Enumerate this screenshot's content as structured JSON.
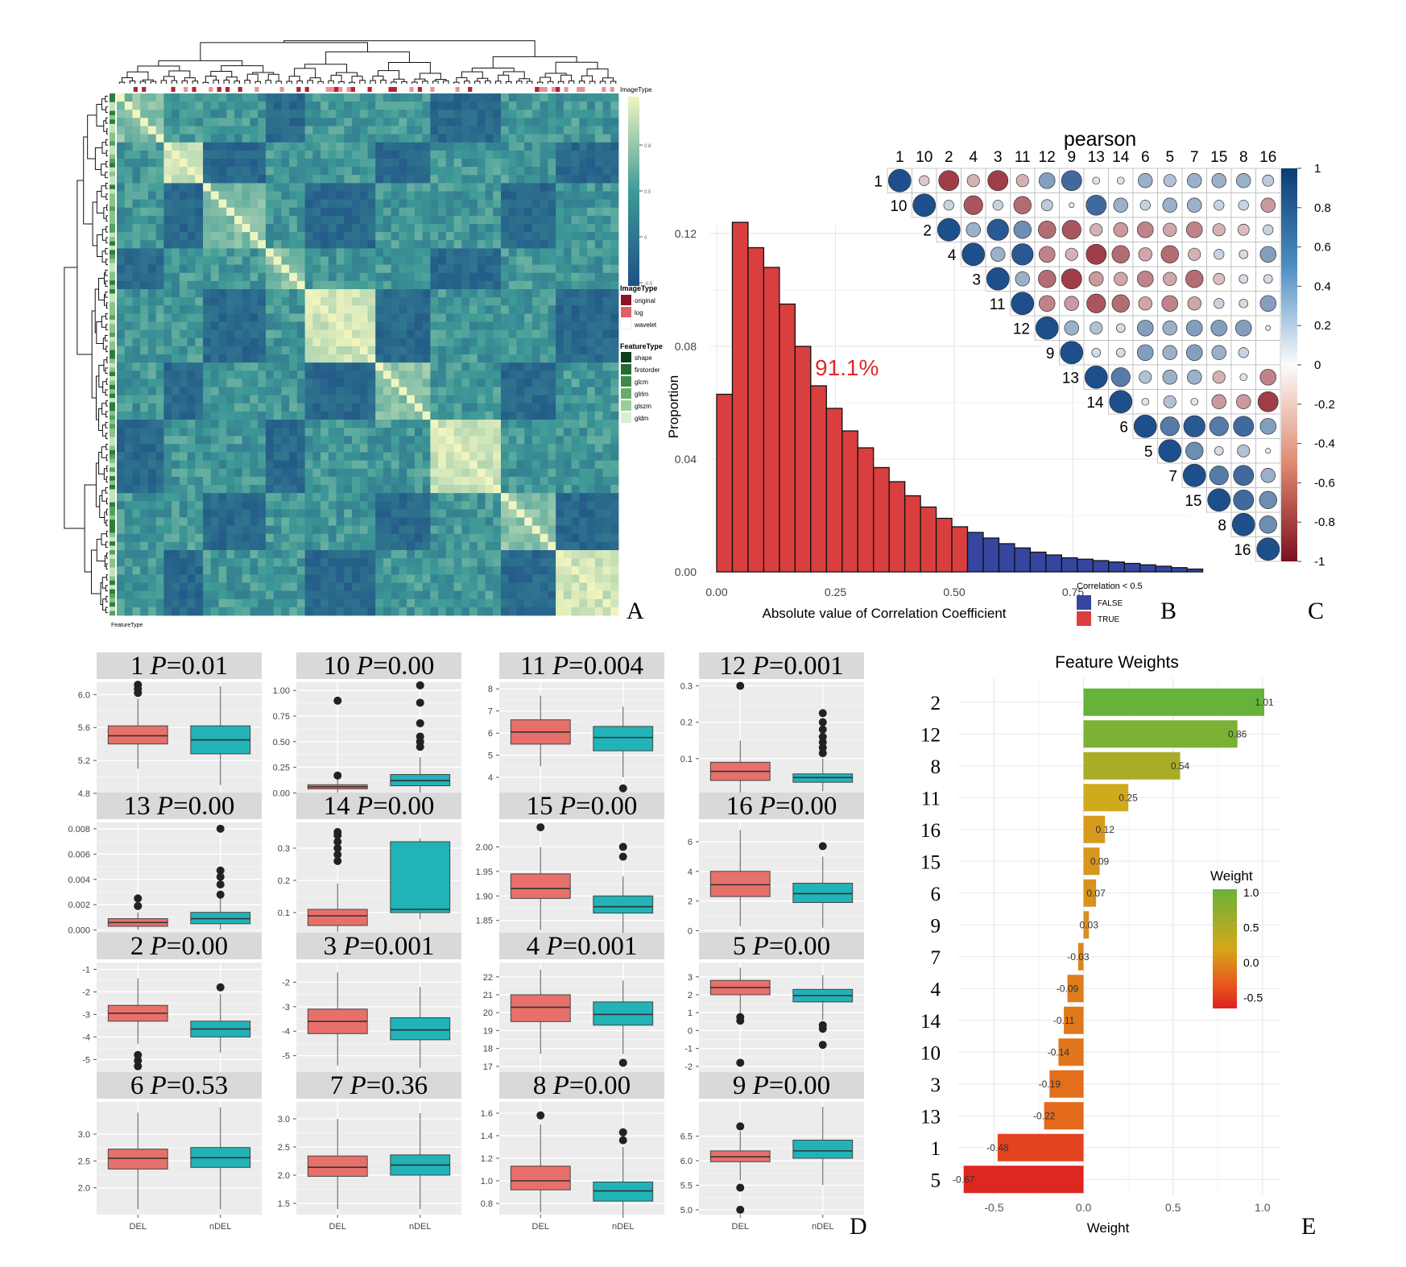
{
  "panel_letters": [
    "A",
    "B",
    "C",
    "D",
    "E"
  ],
  "colors": {
    "red": "#d93f3f",
    "blue": "#3545a0",
    "box_del": "#e8706b",
    "box_ndel": "#21b3b8",
    "heat_lo": "#1f4f86",
    "heat_mid": "#3f9a97",
    "heat_hi": "#f0f5c0",
    "corr_pos": "#1d4f8c",
    "corr_neg": "#8e1b26",
    "panel_bg": "#ececec",
    "strip_bg": "#d9d9d9"
  },
  "panel_a": {
    "title": "ImageType",
    "colorbar_ticks": [
      "0.8",
      "0.5",
      "0",
      "-0.5"
    ],
    "legend1_title": "ImageType",
    "legend1_items": [
      {
        "label": "original",
        "color": "#8a1424"
      },
      {
        "label": "log",
        "color": "#e0606a"
      },
      {
        "label": "wavelet",
        "color": "#ffffff"
      }
    ],
    "legend2_title": "FeatureType",
    "legend2_items": [
      {
        "label": "shape",
        "color": "#0d3d1a"
      },
      {
        "label": "firstorder",
        "color": "#236b32"
      },
      {
        "label": "glcm",
        "color": "#3b8a47"
      },
      {
        "label": "glrlm",
        "color": "#66ad6c"
      },
      {
        "label": "glszm",
        "color": "#9ccd98"
      },
      {
        "label": "gldm",
        "color": "#d7efd2"
      }
    ],
    "bottom_label": "FeatureType"
  },
  "chart_data": [
    {
      "panel": "B",
      "type": "bar",
      "xlabel": "Absolute value of Correlation Coefficient",
      "ylabel": "Proportion",
      "x_ticks": [
        "0.00",
        "0.25",
        "0.50",
        "0.75"
      ],
      "y_ticks": [
        "0.00",
        "0.04",
        "0.08",
        "0.12"
      ],
      "xlim": [
        0,
        1
      ],
      "ylim": [
        0,
        0.12
      ],
      "bin_width": 0.033,
      "bin_starts": [
        0.0,
        0.033,
        0.066,
        0.099,
        0.132,
        0.165,
        0.198,
        0.231,
        0.264,
        0.297,
        0.33,
        0.363,
        0.396,
        0.429,
        0.462,
        0.495,
        0.528,
        0.561,
        0.594,
        0.627,
        0.66,
        0.693,
        0.726,
        0.759,
        0.792,
        0.825,
        0.858,
        0.891,
        0.924,
        0.957,
        0.99
      ],
      "values": [
        0.063,
        0.124,
        0.115,
        0.108,
        0.095,
        0.08,
        0.066,
        0.058,
        0.05,
        0.044,
        0.037,
        0.032,
        0.027,
        0.023,
        0.019,
        0.016,
        0.014,
        0.012,
        0.01,
        0.0085,
        0.007,
        0.006,
        0.005,
        0.0045,
        0.004,
        0.0035,
        0.003,
        0.0025,
        0.002,
        0.0015,
        0.001
      ],
      "threshold": 0.5,
      "annotation": "91.1%",
      "legend_title": "Correlation < 0.5",
      "legend": [
        {
          "label": "FALSE",
          "color": "#3545a0"
        },
        {
          "label": "TRUE",
          "color": "#d93f3f"
        }
      ]
    },
    {
      "panel": "C",
      "type": "heatmap",
      "title": "pearson",
      "labels": [
        "1",
        "10",
        "2",
        "4",
        "3",
        "11",
        "12",
        "9",
        "13",
        "14",
        "6",
        "5",
        "7",
        "15",
        "8",
        "16"
      ],
      "upper_triangle": [
        [
          1,
          -0.2,
          -0.8,
          -0.3,
          -0.8,
          -0.3,
          0.5,
          0.8,
          0.1,
          0.1,
          0.4,
          0.3,
          0.4,
          0.4,
          0.4,
          0.25
        ],
        [
          1,
          0.2,
          -0.7,
          0.2,
          -0.6,
          0.25,
          0.05,
          0.8,
          0.4,
          0.2,
          0.4,
          0.4,
          0.2,
          0.2,
          -0.4
        ],
        [
          1,
          0.4,
          0.9,
          0.6,
          -0.6,
          -0.7,
          -0.3,
          -0.4,
          -0.5,
          -0.35,
          -0.5,
          -0.3,
          -0.25,
          0.2
        ],
        [
          1,
          0.4,
          0.9,
          -0.5,
          -0.3,
          -0.8,
          -0.6,
          -0.35,
          -0.6,
          -0.3,
          0.2,
          0.15,
          0.5
        ],
        [
          1,
          0.4,
          -0.6,
          -0.8,
          -0.4,
          -0.35,
          -0.5,
          -0.35,
          -0.6,
          -0.25,
          0.15,
          0.15
        ],
        [
          1,
          -0.5,
          -0.4,
          -0.7,
          -0.6,
          -0.35,
          -0.5,
          -0.35,
          0.2,
          0.15,
          0.5
        ],
        [
          1,
          0.4,
          0.3,
          0.15,
          0.5,
          0.4,
          0.5,
          0.5,
          0.5,
          0.05
        ],
        [
          1,
          0.15,
          0.15,
          0.5,
          0.4,
          0.5,
          0.4,
          0.2
        ],
        [
          1,
          0.7,
          0.3,
          0.4,
          0.4,
          -0.3,
          0.1,
          -0.5
        ],
        [
          1,
          0.1,
          0.3,
          0.1,
          -0.4,
          -0.4,
          -0.8
        ],
        [
          1,
          0.7,
          0.9,
          0.7,
          0.8,
          0.5
        ],
        [
          1,
          0.6,
          0.15,
          0.3,
          0.05
        ],
        [
          1,
          0.7,
          0.8,
          0.4
        ],
        [
          1,
          0.8,
          0.6
        ],
        [
          1,
          0.6
        ],
        [
          1
        ]
      ],
      "colorbar_ticks": [
        "1",
        "0.8",
        "0.6",
        "0.4",
        "0.2",
        "0",
        "-0.2",
        "-0.4",
        "-0.6",
        "-0.8",
        "-1"
      ]
    },
    {
      "panel": "D",
      "type": "box",
      "categories": [
        "DEL",
        "nDEL"
      ],
      "facets": [
        {
          "id": "1",
          "p": "P=0.01",
          "yticks": [
            "6.0",
            "5.6",
            "5.2",
            "4.8"
          ],
          "tickvals": [
            6.0,
            5.6,
            5.2,
            4.8
          ],
          "ylim": [
            4.78,
            6.15
          ],
          "DEL": {
            "q1": 5.4,
            "med": 5.5,
            "q3": 5.62,
            "lo": 5.1,
            "hi": 5.95,
            "out": [
              6.02,
              6.07,
              6.12
            ]
          },
          "nDEL": {
            "q1": 5.28,
            "med": 5.45,
            "q3": 5.62,
            "lo": 4.9,
            "hi": 6.1,
            "out": []
          }
        },
        {
          "id": "10",
          "p": "P=0.00",
          "yticks": [
            "1.00",
            "0.75",
            "0.50",
            "0.25",
            "0.00"
          ],
          "tickvals": [
            1.0,
            0.75,
            0.5,
            0.25,
            0.0
          ],
          "ylim": [
            -0.02,
            1.08
          ],
          "DEL": {
            "q1": 0.04,
            "med": 0.06,
            "q3": 0.08,
            "lo": 0.0,
            "hi": 0.14,
            "out": [
              0.17,
              0.9
            ]
          },
          "nDEL": {
            "q1": 0.07,
            "med": 0.12,
            "q3": 0.18,
            "lo": 0.0,
            "hi": 0.35,
            "out": [
              0.45,
              0.5,
              0.55,
              0.68,
              0.88,
              1.05
            ]
          }
        },
        {
          "id": "11",
          "p": "P=0.004",
          "yticks": [
            "8",
            "7",
            "6",
            "5",
            "4"
          ],
          "tickvals": [
            8,
            7,
            6,
            5,
            4
          ],
          "ylim": [
            3.2,
            8.3
          ],
          "DEL": {
            "q1": 5.5,
            "med": 6.05,
            "q3": 6.6,
            "lo": 4.5,
            "hi": 7.7,
            "out": []
          },
          "nDEL": {
            "q1": 5.2,
            "med": 5.8,
            "q3": 6.3,
            "lo": 4.0,
            "hi": 7.2,
            "out": [
              3.5
            ]
          }
        },
        {
          "id": "12",
          "p": "P=0.001",
          "yticks": [
            "0.3",
            "0.2",
            "0.1"
          ],
          "tickvals": [
            0.3,
            0.2,
            0.1
          ],
          "ylim": [
            0.0,
            0.31
          ],
          "DEL": {
            "q1": 0.04,
            "med": 0.065,
            "q3": 0.09,
            "lo": 0.005,
            "hi": 0.15,
            "out": [
              0.3
            ]
          },
          "nDEL": {
            "q1": 0.035,
            "med": 0.048,
            "q3": 0.058,
            "lo": 0.01,
            "hi": 0.1,
            "out": [
              0.115,
              0.13,
              0.145,
              0.16,
              0.18,
              0.2,
              0.225
            ]
          }
        },
        {
          "id": "13",
          "p": "P=0.00",
          "yticks": [
            "0.008",
            "0.006",
            "0.004",
            "0.002",
            "0.000"
          ],
          "tickvals": [
            0.008,
            0.006,
            0.004,
            0.002,
            0.0
          ],
          "ylim": [
            -0.0004,
            0.0085
          ],
          "DEL": {
            "q1": 0.0003,
            "med": 0.0006,
            "q3": 0.0009,
            "lo": 0.0,
            "hi": 0.0014,
            "out": [
              0.0019,
              0.0025
            ]
          },
          "nDEL": {
            "q1": 0.0005,
            "med": 0.0009,
            "q3": 0.0014,
            "lo": 0.0,
            "hi": 0.0025,
            "out": [
              0.0028,
              0.0036,
              0.0042,
              0.0047,
              0.008
            ]
          }
        },
        {
          "id": "14",
          "p": "P=0.00",
          "yticks": [
            "0.3",
            "0.2",
            "0.1"
          ],
          "tickvals": [
            0.3,
            0.2,
            0.1
          ],
          "ylim": [
            0.03,
            0.38
          ],
          "DEL": {
            "q1": 0.06,
            "med": 0.09,
            "q3": 0.11,
            "lo": 0.04,
            "hi": 0.19,
            "out": [
              0.26,
              0.28,
              0.3,
              0.32,
              0.34,
              0.35
            ]
          },
          "nDEL": {
            "q1": 0.1,
            "med": 0.11,
            "q3": 0.32,
            "lo": 0.08,
            "hi": 0.33,
            "out": []
          }
        },
        {
          "id": "15",
          "p": "P=0.00",
          "yticks": [
            "2.00",
            "1.95",
            "1.90",
            "1.85"
          ],
          "tickvals": [
            2.0,
            1.95,
            1.9,
            1.85
          ],
          "ylim": [
            1.82,
            2.05
          ],
          "DEL": {
            "q1": 1.895,
            "med": 1.915,
            "q3": 1.945,
            "lo": 1.83,
            "hi": 2.0,
            "out": [
              2.04
            ]
          },
          "nDEL": {
            "q1": 1.865,
            "med": 1.878,
            "q3": 1.9,
            "lo": 1.82,
            "hi": 1.94,
            "out": [
              1.98,
              2.0
            ]
          }
        },
        {
          "id": "16",
          "p": "P=0.00",
          "yticks": [
            "6",
            "4",
            "2",
            "0"
          ],
          "tickvals": [
            6,
            4,
            2,
            0
          ],
          "ylim": [
            -0.3,
            7.3
          ],
          "DEL": {
            "q1": 2.3,
            "med": 3.1,
            "q3": 4.0,
            "lo": 0.3,
            "hi": 6.8,
            "out": []
          },
          "nDEL": {
            "q1": 1.9,
            "med": 2.5,
            "q3": 3.2,
            "lo": 0.2,
            "hi": 5.0,
            "out": [
              5.7
            ]
          }
        },
        {
          "id": "2",
          "p": "P=0.00",
          "yticks": [
            "-1",
            "-2",
            "-3",
            "-4",
            "-5"
          ],
          "tickvals": [
            -1,
            -2,
            -3,
            -4,
            -5
          ],
          "ylim": [
            -5.7,
            -0.7
          ],
          "DEL": {
            "q1": -3.3,
            "med": -2.95,
            "q3": -2.6,
            "lo": -4.3,
            "hi": -1.4,
            "out": [
              -4.8,
              -5.05,
              -5.3
            ]
          },
          "nDEL": {
            "q1": -4.0,
            "med": -3.65,
            "q3": -3.3,
            "lo": -4.7,
            "hi": -2.1,
            "out": [
              -1.8
            ]
          }
        },
        {
          "id": "3",
          "p": "P=0.001",
          "yticks": [
            "-2",
            "-3",
            "-4",
            "-5"
          ],
          "tickvals": [
            -2,
            -3,
            -4,
            -5
          ],
          "ylim": [
            -5.8,
            -1.2
          ],
          "DEL": {
            "q1": -4.1,
            "med": -3.6,
            "q3": -3.1,
            "lo": -5.4,
            "hi": -1.6,
            "out": []
          },
          "nDEL": {
            "q1": -4.35,
            "med": -3.95,
            "q3": -3.45,
            "lo": -5.5,
            "hi": -2.2,
            "out": []
          }
        },
        {
          "id": "4",
          "p": "P=0.001",
          "yticks": [
            "22",
            "21",
            "20",
            "19",
            "18",
            "17"
          ],
          "tickvals": [
            22,
            21,
            20,
            19,
            18,
            17
          ],
          "ylim": [
            16.5,
            22.8
          ],
          "DEL": {
            "q1": 19.5,
            "med": 20.3,
            "q3": 21.0,
            "lo": 17.7,
            "hi": 22.4,
            "out": []
          },
          "nDEL": {
            "q1": 19.3,
            "med": 19.9,
            "q3": 20.6,
            "lo": 17.7,
            "hi": 21.8,
            "out": [
              17.2
            ]
          }
        },
        {
          "id": "5",
          "p": "P=0.00",
          "yticks": [
            "3",
            "2",
            "1",
            "0",
            "-1",
            "-2"
          ],
          "tickvals": [
            3,
            2,
            1,
            0,
            -1,
            -2
          ],
          "ylim": [
            -2.5,
            3.8
          ],
          "DEL": {
            "q1": 2.0,
            "med": 2.4,
            "q3": 2.8,
            "lo": 0.9,
            "hi": 3.5,
            "out": [
              0.55,
              0.75,
              -1.8
            ]
          },
          "nDEL": {
            "q1": 1.6,
            "med": 1.95,
            "q3": 2.3,
            "lo": 0.6,
            "hi": 3.1,
            "out": [
              0.1,
              0.3,
              -0.8
            ]
          }
        },
        {
          "id": "6",
          "p": "P=0.53",
          "yticks": [
            "3.0",
            "2.5",
            "2.0"
          ],
          "tickvals": [
            3.0,
            2.5,
            2.0
          ],
          "ylim": [
            1.5,
            3.6
          ],
          "DEL": {
            "q1": 2.35,
            "med": 2.55,
            "q3": 2.72,
            "lo": 1.6,
            "hi": 3.4,
            "out": []
          },
          "nDEL": {
            "q1": 2.38,
            "med": 2.56,
            "q3": 2.75,
            "lo": 1.6,
            "hi": 3.5,
            "out": []
          }
        },
        {
          "id": "7",
          "p": "P=0.36",
          "yticks": [
            "3.0",
            "2.5",
            "2.0",
            "1.5"
          ],
          "tickvals": [
            3.0,
            2.5,
            2.0,
            1.5
          ],
          "ylim": [
            1.3,
            3.3
          ],
          "DEL": {
            "q1": 1.98,
            "med": 2.14,
            "q3": 2.34,
            "lo": 1.4,
            "hi": 3.0,
            "out": []
          },
          "nDEL": {
            "q1": 2.0,
            "med": 2.18,
            "q3": 2.36,
            "lo": 1.4,
            "hi": 3.1,
            "out": []
          }
        },
        {
          "id": "8",
          "p": "P=0.00",
          "yticks": [
            "1.6",
            "1.4",
            "1.2",
            "1.0",
            "0.8"
          ],
          "tickvals": [
            1.6,
            1.4,
            1.2,
            1.0,
            0.8
          ],
          "ylim": [
            0.7,
            1.7
          ],
          "DEL": {
            "q1": 0.92,
            "med": 1.0,
            "q3": 1.13,
            "lo": 0.72,
            "hi": 1.5,
            "out": [
              1.58
            ]
          },
          "nDEL": {
            "q1": 0.82,
            "med": 0.91,
            "q3": 0.99,
            "lo": 0.7,
            "hi": 1.3,
            "out": [
              1.36,
              1.43
            ]
          }
        },
        {
          "id": "9",
          "p": "P=0.00",
          "yticks": [
            "6.5",
            "6.0",
            "5.5",
            "5.0"
          ],
          "tickvals": [
            6.5,
            6.0,
            5.5,
            5.0
          ],
          "ylim": [
            4.9,
            7.2
          ],
          "DEL": {
            "q1": 5.98,
            "med": 6.08,
            "q3": 6.2,
            "lo": 5.6,
            "hi": 6.6,
            "out": [
              6.7,
              5.45,
              5.0
            ]
          },
          "nDEL": {
            "q1": 6.05,
            "med": 6.2,
            "q3": 6.42,
            "lo": 5.5,
            "hi": 7.1,
            "out": []
          }
        }
      ]
    },
    {
      "panel": "E",
      "type": "bar",
      "title": "Feature Weights",
      "xlabel": "Weight",
      "x_ticks": [
        "-0.5",
        "0.0",
        "0.5",
        "1.0"
      ],
      "xlim": [
        -0.7,
        1.1
      ],
      "categories": [
        "2",
        "12",
        "8",
        "11",
        "16",
        "15",
        "6",
        "9",
        "7",
        "4",
        "14",
        "10",
        "3",
        "13",
        "1",
        "5"
      ],
      "values": [
        1.01,
        0.86,
        0.54,
        0.25,
        0.12,
        0.09,
        0.07,
        0.03,
        -0.03,
        -0.09,
        -0.11,
        -0.14,
        -0.19,
        -0.22,
        -0.48,
        -0.67
      ],
      "value_labels": [
        "1.01",
        "0.86",
        "0.54",
        "0.25",
        "0.12",
        "0.09",
        "0.07",
        "0.03",
        "-0.03",
        "-0.09",
        "-0.11",
        "-0.14",
        "-0.19",
        "-0.22",
        "-0.48",
        "-0.67"
      ],
      "legend_title": "Weight",
      "legend_ticks": [
        "1.0",
        "0.5",
        "0.0",
        "-0.5"
      ]
    }
  ]
}
